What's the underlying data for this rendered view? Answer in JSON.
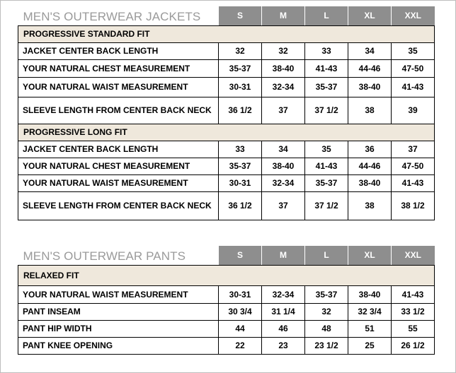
{
  "jackets": {
    "title": "MEN'S OUTERWEAR JACKETS",
    "sizes": [
      "S",
      "M",
      "L",
      "XL",
      "XXL"
    ],
    "sections": [
      {
        "name": "PROGRESSIVE STANDARD FIT",
        "rows": [
          {
            "label": "JACKET CENTER BACK LENGTH",
            "values": [
              "32",
              "32",
              "33",
              "34",
              "35"
            ]
          },
          {
            "label": "YOUR NATURAL CHEST MEASUREMENT",
            "values": [
              "35-37",
              "38-40",
              "41-43",
              "44-46",
              "47-50"
            ]
          },
          {
            "label": "YOUR NATURAL WAIST MEASUREMENT",
            "values": [
              "30-31",
              "32-34",
              "35-37",
              "38-40",
              "41-43"
            ]
          },
          {
            "label": "SLEEVE LENGTH FROM CENTER BACK NECK",
            "values": [
              "36 1/2",
              "37",
              "37 1/2",
              "38",
              "39"
            ]
          }
        ]
      },
      {
        "name": "PROGRESSIVE LONG FIT",
        "rows": [
          {
            "label": "JACKET CENTER BACK LENGTH",
            "values": [
              "33",
              "34",
              "35",
              "36",
              "37"
            ]
          },
          {
            "label": "YOUR NATURAL CHEST MEASUREMENT",
            "values": [
              "35-37",
              "38-40",
              "41-43",
              "44-46",
              "47-50"
            ]
          },
          {
            "label": "YOUR NATURAL WAIST MEASUREMENT",
            "values": [
              "30-31",
              "32-34",
              "35-37",
              "38-40",
              "41-43"
            ]
          },
          {
            "label": "SLEEVE LENGTH FROM CENTER BACK NECK",
            "values": [
              "36 1/2",
              "37",
              "37 1/2",
              "38",
              "38 1/2"
            ]
          }
        ]
      }
    ]
  },
  "pants": {
    "title": "MEN'S OUTERWEAR PANTS",
    "sizes": [
      "S",
      "M",
      "L",
      "XL",
      "XXL"
    ],
    "sections": [
      {
        "name": "RELAXED FIT",
        "rows": [
          {
            "label": "YOUR NATURAL WAIST MEASUREMENT",
            "values": [
              "30-31",
              "32-34",
              "35-37",
              "38-40",
              "41-43"
            ]
          },
          {
            "label": "PANT INSEAM",
            "values": [
              "30 3/4",
              "31 1/4",
              "32",
              "32 3/4",
              "33 1/2"
            ]
          },
          {
            "label": "PANT HIP WIDTH",
            "values": [
              "44",
              "46",
              "48",
              "51",
              "55"
            ]
          },
          {
            "label": "PANT KNEE OPENING",
            "values": [
              "22",
              "23",
              "23 1/2",
              "25",
              "26 1/2"
            ]
          }
        ]
      }
    ]
  }
}
